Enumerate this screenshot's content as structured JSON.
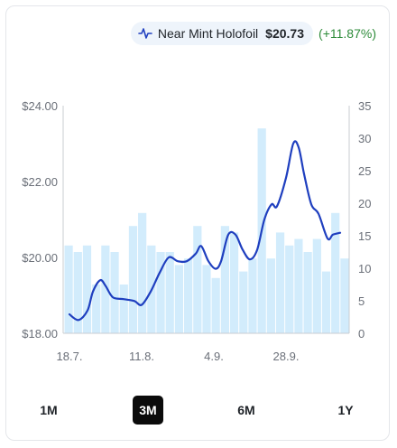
{
  "legend": {
    "icon": "line-chart-icon",
    "label": "Near Mint Holofoil",
    "price": "$20.73",
    "change": "(+11.87%)",
    "change_color": "#2e8b3a"
  },
  "range_buttons": [
    {
      "label": "1M",
      "active": false
    },
    {
      "label": "3M",
      "active": true
    },
    {
      "label": "6M",
      "active": false
    },
    {
      "label": "1Y",
      "active": false
    }
  ],
  "colors": {
    "line": "#1f3fbf",
    "bars": "#d2ecfc",
    "axis": "#c8ccd2",
    "tick_text": "#6b7079",
    "active_button_bg": "#0b0b0b"
  },
  "chart_data": {
    "type": "bar+line",
    "title": "",
    "xlabel": "",
    "ylabel": "",
    "ylabel_right": "",
    "x_ticks": [
      "18.7.",
      "11.8.",
      "4.9.",
      "28.9."
    ],
    "y_left": {
      "ticks": [
        "$18.00",
        "$20.00",
        "$22.00",
        "$24.00"
      ],
      "lim": [
        18,
        24
      ]
    },
    "y_right": {
      "ticks": [
        "0",
        "5",
        "10",
        "15",
        "20",
        "25",
        "30",
        "35"
      ],
      "lim": [
        0,
        35
      ]
    },
    "series": [
      {
        "kind": "bar",
        "axis": "right",
        "values": [
          13.5,
          12.5,
          13.5,
          7.5,
          13.5,
          12.5,
          7.5,
          16.5,
          18.5,
          13.5,
          12.5,
          12.5,
          10.5,
          11.5,
          16.5,
          10.5,
          8.5,
          16.5,
          15.5,
          9.5,
          11.5,
          31.5,
          11.5,
          15.5,
          13.5,
          14.5,
          12.5,
          14.5,
          9.5,
          18.5,
          11.5
        ]
      },
      {
        "kind": "line",
        "axis": "left",
        "points": [
          [
            0.0,
            18.5
          ],
          [
            0.5,
            18.35
          ],
          [
            1.0,
            18.6
          ],
          [
            1.3,
            19.1
          ],
          [
            1.7,
            19.4
          ],
          [
            2.0,
            19.25
          ],
          [
            2.4,
            18.95
          ],
          [
            3.0,
            18.9
          ],
          [
            3.6,
            18.85
          ],
          [
            4.0,
            18.75
          ],
          [
            4.5,
            19.1
          ],
          [
            5.0,
            19.6
          ],
          [
            5.5,
            20.0
          ],
          [
            6.0,
            19.9
          ],
          [
            6.5,
            19.9
          ],
          [
            7.0,
            20.1
          ],
          [
            7.3,
            20.3
          ],
          [
            7.7,
            19.9
          ],
          [
            8.1,
            19.7
          ],
          [
            8.4,
            19.9
          ],
          [
            8.8,
            20.6
          ],
          [
            9.2,
            20.6
          ],
          [
            9.6,
            20.2
          ],
          [
            10.0,
            19.95
          ],
          [
            10.4,
            20.2
          ],
          [
            10.8,
            21.0
          ],
          [
            11.2,
            21.4
          ],
          [
            11.5,
            21.35
          ],
          [
            12.0,
            22.1
          ],
          [
            12.4,
            23.0
          ],
          [
            12.7,
            22.9
          ],
          [
            13.0,
            22.2
          ],
          [
            13.4,
            21.4
          ],
          [
            13.8,
            21.15
          ],
          [
            14.3,
            20.5
          ],
          [
            14.6,
            20.6
          ],
          [
            15.0,
            20.65
          ]
        ]
      }
    ],
    "x_tick_positions": [
      0,
      4,
      8,
      12
    ],
    "x_range": [
      0,
      15
    ],
    "grid": false,
    "legend_position": "top-right"
  }
}
